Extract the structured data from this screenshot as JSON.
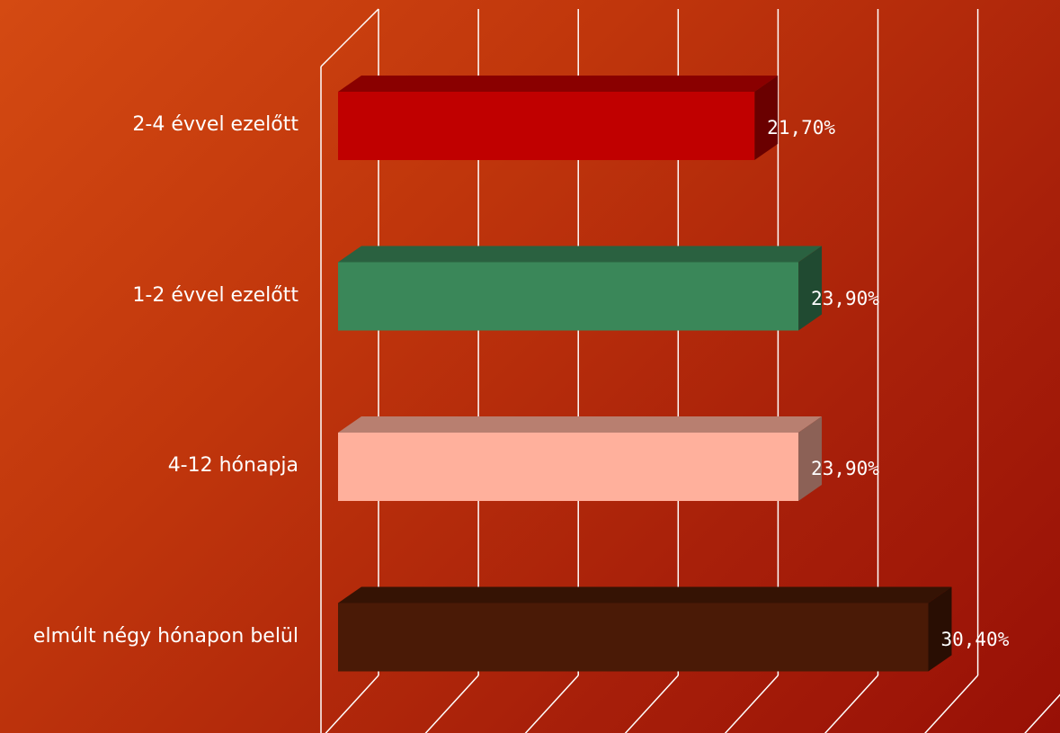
{
  "chart_data": {
    "type": "bar",
    "orientation": "horizontal",
    "three_d": true,
    "categories": [
      "2-4 évvel ezelőtt",
      "1-2 évvel ezelőtt",
      "4-12 hónapja",
      "elmúlt négy hónapon belül"
    ],
    "values": [
      21.7,
      23.9,
      23.9,
      30.4
    ],
    "value_labels": [
      "21,70%",
      "23,90%",
      "23,90%",
      "30,40%"
    ],
    "bar_colors": [
      "#c00000",
      "#3a8759",
      "#ffb09c",
      "#4a1a06"
    ],
    "xlim": [
      0,
      35
    ],
    "grid": true,
    "title": "",
    "xlabel": "",
    "ylabel": ""
  }
}
